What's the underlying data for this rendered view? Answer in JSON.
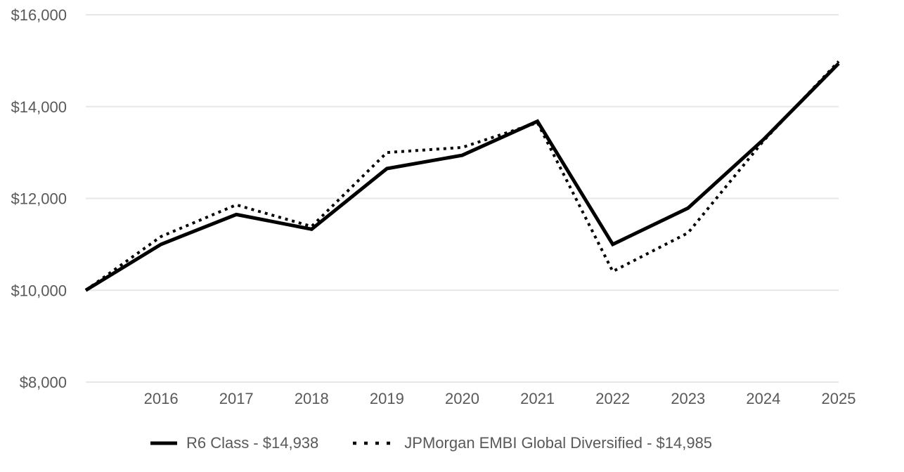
{
  "colors": {
    "background": "#ffffff",
    "gridline": "#e7e7e7",
    "axis_label": "#595959",
    "series_line": "#000000"
  },
  "chart_data": {
    "type": "line",
    "x": [
      2015,
      2016,
      2017,
      2018,
      2019,
      2020,
      2021,
      2022,
      2023,
      2024,
      2025
    ],
    "x_tick_labels": [
      "2016",
      "2017",
      "2018",
      "2019",
      "2020",
      "2021",
      "2022",
      "2023",
      "2024",
      "2025"
    ],
    "y_ticks": [
      8000,
      10000,
      12000,
      14000,
      16000
    ],
    "y_tick_labels": [
      "$8,000",
      "$10,000",
      "$12,000",
      "$14,000",
      "$16,000"
    ],
    "ylim": [
      8000,
      16000
    ],
    "xlabel": "",
    "ylabel": "",
    "grid": "horizontal-only",
    "legend_position": "bottom-center",
    "series": [
      {
        "name": "R6 Class",
        "final_value": "$14,938",
        "legend_label": "R6 Class - $14,938",
        "line_style": "solid",
        "color": "#000000",
        "values": [
          10000,
          11000,
          11650,
          11330,
          12650,
          12940,
          13680,
          11000,
          11790,
          13280,
          14938
        ]
      },
      {
        "name": "JPMorgan EMBI Global Diversified",
        "final_value": "$14,985",
        "legend_label": "JPMorgan EMBI Global Diversified - $14,985",
        "line_style": "dotted",
        "color": "#000000",
        "values": [
          10000,
          11170,
          11860,
          11390,
          13000,
          13110,
          13650,
          10410,
          11250,
          13250,
          14985
        ]
      }
    ]
  }
}
